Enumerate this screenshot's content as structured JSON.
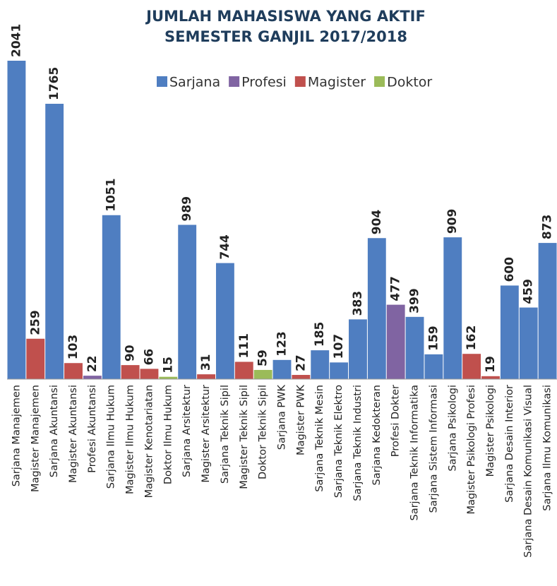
{
  "chart_data": {
    "type": "bar",
    "title": [
      "JUMLAH MAHASISWA YANG AKTIF",
      "SEMESTER GANJIL 2017/2018"
    ],
    "categories": [
      "Sarjana Manajemen",
      "Magister Manajemen",
      "Sarjana Akuntansi",
      "Magister Akuntansi",
      "Profesi Akuntansi",
      "Sarjana Ilmu Hukum",
      "Magister Ilmu Hukum",
      "Magister Kenotariatan",
      "Doktor Ilmu Hukum",
      "Sarjana Arsitektur",
      "Magister Arsitektur",
      "Sarjana Teknik Sipil",
      "Magister Teknik Sipil",
      "Doktor Teknik Sipil",
      "Sarjana PWK",
      "Magister PWK",
      "Sarjana Teknik Mesin",
      "Sarjana Teknik Elektro",
      "Sarjana Teknik Industri",
      "Sarjana Kedokteran",
      "Profesi Dokter",
      "Sarjana Teknik Informatika",
      "Sarjana Sistem Informasi",
      "Sarjana Psikologi",
      "Magister Psikologi Profesi",
      "Magister Psikologi",
      "Sarjana Desain Interior",
      "Sarjana Desain Komunikasi Visual",
      "Sarjana Ilmu Komunikasi"
    ],
    "series": [
      {
        "name": "Sarjana",
        "color": "#4f7ec1",
        "values": [
          2041,
          null,
          1765,
          null,
          null,
          1051,
          null,
          null,
          null,
          989,
          null,
          744,
          null,
          null,
          123,
          null,
          185,
          107,
          383,
          904,
          null,
          399,
          159,
          909,
          null,
          null,
          600,
          459,
          873
        ]
      },
      {
        "name": "Profesi",
        "color": "#8064a2",
        "values": [
          null,
          null,
          null,
          null,
          22,
          null,
          null,
          null,
          null,
          null,
          null,
          null,
          null,
          null,
          null,
          null,
          null,
          null,
          null,
          null,
          477,
          null,
          null,
          null,
          null,
          null,
          null,
          null,
          null
        ]
      },
      {
        "name": "Magister",
        "color": "#c0504d",
        "values": [
          null,
          259,
          null,
          103,
          null,
          null,
          90,
          66,
          null,
          null,
          31,
          null,
          111,
          null,
          null,
          27,
          null,
          null,
          null,
          null,
          null,
          null,
          null,
          null,
          162,
          19,
          null,
          null,
          null
        ]
      },
      {
        "name": "Doktor",
        "color": "#9bbb59",
        "values": [
          null,
          null,
          null,
          null,
          null,
          null,
          null,
          null,
          15,
          null,
          null,
          null,
          null,
          59,
          null,
          null,
          null,
          null,
          null,
          null,
          null,
          null,
          null,
          null,
          null,
          null,
          null,
          null,
          null
        ]
      }
    ]
  }
}
